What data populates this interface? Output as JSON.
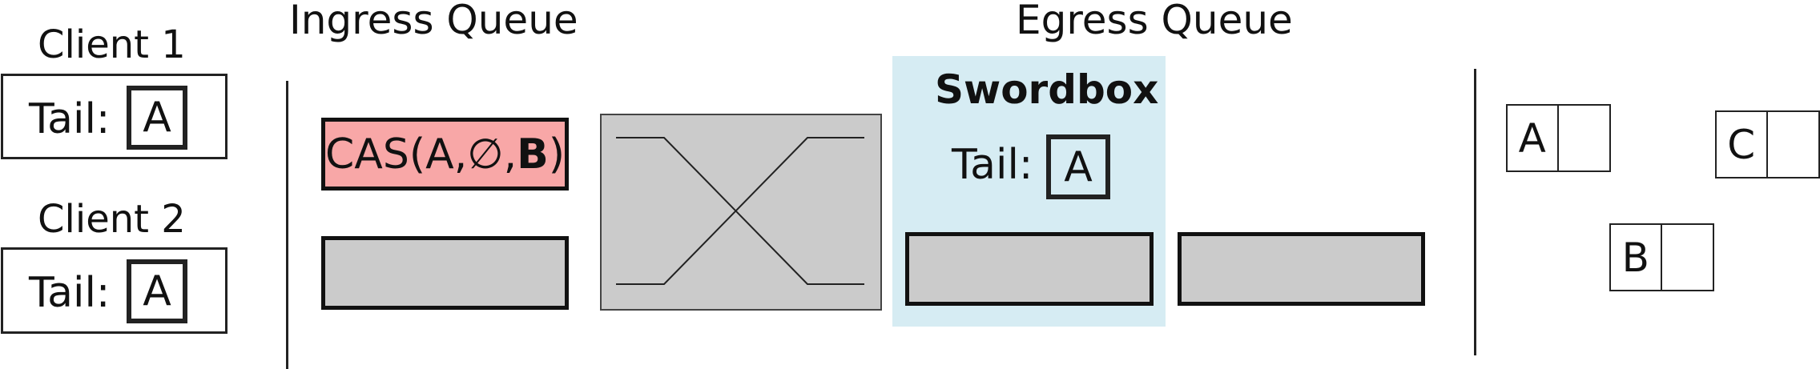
{
  "clients": [
    {
      "label": "Client 1",
      "tail_label": "Tail:",
      "tail_value": "A"
    },
    {
      "label": "Client 2",
      "tail_label": "Tail:",
      "tail_value": "A"
    }
  ],
  "ingress": {
    "title": "Ingress Queue",
    "slots": [
      {
        "op": "CAS",
        "args": [
          "A",
          "∅",
          "B"
        ],
        "color": "#f8a7a7"
      },
      {
        "op": "",
        "args": [],
        "color": "#cbcbcb"
      }
    ]
  },
  "switch": {
    "color": "#cbcbcb"
  },
  "egress": {
    "title": "Egress Queue",
    "swordbox": {
      "title": "Swordbox",
      "tail_label": "Tail:",
      "tail_value": "A",
      "color": "#d6ecf3"
    },
    "slots": [
      {
        "color": "#cbcbcb"
      },
      {
        "color": "#cbcbcb"
      }
    ]
  },
  "memory_nodes": [
    {
      "value": "A"
    },
    {
      "value": "C"
    },
    {
      "value": "B"
    }
  ]
}
